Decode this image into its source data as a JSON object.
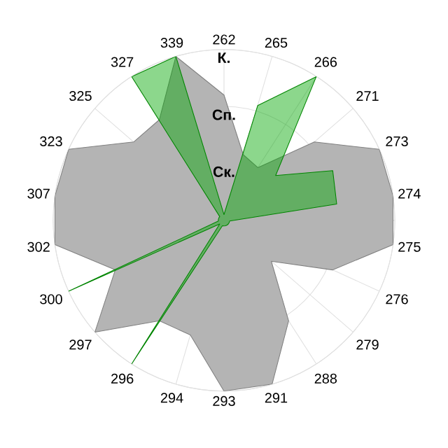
{
  "chart_data": {
    "type": "radar",
    "categories": [
      "262",
      "265",
      "266",
      "271",
      "273",
      "274",
      "275",
      "276",
      "279",
      "288",
      "291",
      "293",
      "294",
      "296",
      "297",
      "300",
      "302",
      "307",
      "323",
      "325",
      "327",
      "339"
    ],
    "series": [
      {
        "color": "#b4b4b4",
        "values": [
          2.2,
          1.2,
          1.1,
          2.1,
          3,
          3,
          3,
          2.1,
          1.1,
          2.1,
          3,
          3,
          2.1,
          2.1,
          3,
          2.1,
          3,
          3,
          3,
          2.1,
          2.1,
          3
        ]
      },
      {
        "color": "#00a600",
        "values": [
          0.1,
          2.1,
          3,
          1.2,
          2.1,
          2,
          0.1,
          0.1,
          0.1,
          0.1,
          0.1,
          0.1,
          0.1,
          3,
          0.1,
          3,
          0.1,
          0.1,
          0.1,
          0.1,
          3,
          3
        ]
      }
    ],
    "ylim": [
      0,
      3
    ],
    "yticks": [
      {
        "value": 1,
        "label": "Ск."
      },
      {
        "value": 2,
        "label": "Сп."
      },
      {
        "value": 3,
        "label": "К."
      }
    ],
    "grid": true
  }
}
